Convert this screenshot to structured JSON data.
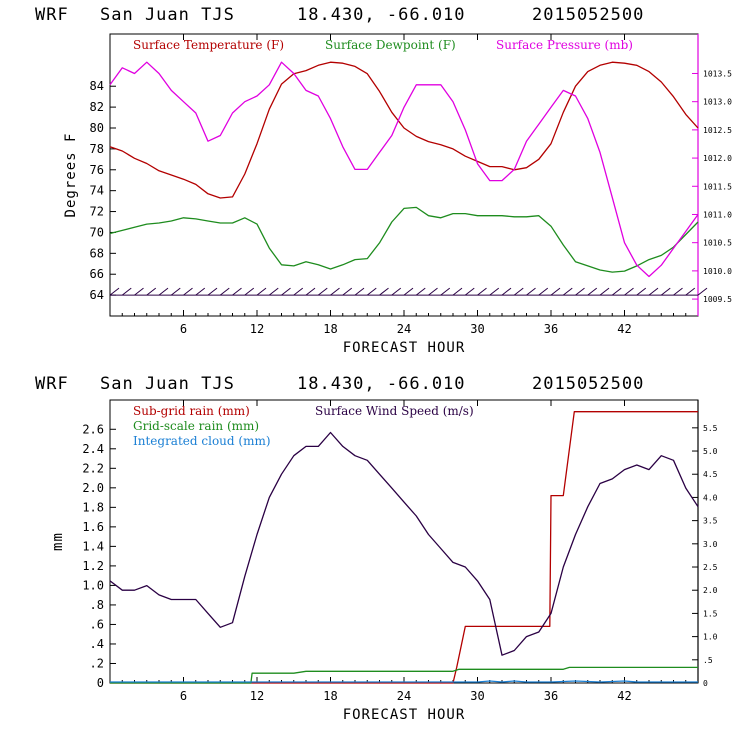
{
  "chart_data": [
    {
      "type": "line",
      "header": {
        "model": "WRF",
        "station": "San Juan TJS",
        "coords": "18.430, -66.010",
        "run": "2015052500"
      },
      "xlabel": "FORECAST HOUR",
      "ylabel": "Degrees F",
      "xlim": [
        0,
        48
      ],
      "ylim": [
        62,
        89
      ],
      "y2lim": [
        1009.2,
        1014.2
      ],
      "x_ticks": [
        6,
        12,
        18,
        24,
        30,
        36,
        42
      ],
      "y_ticks": [
        64,
        66,
        68,
        70,
        72,
        74,
        76,
        78,
        80,
        82,
        84
      ],
      "y2_ticks": [
        "1009.5",
        "1010.0",
        "1010.5",
        "1011.0",
        "1011.5",
        "1012.0",
        "1012.5",
        "1013.0",
        "1013.5"
      ],
      "legend": [
        {
          "label": "Surface Temperature (F)",
          "color": "#b30000"
        },
        {
          "label": "Surface Dewpoint (F)",
          "color": "#1e8c1e"
        },
        {
          "label": "Surface Pressure (mb)",
          "color": "#e000e0"
        }
      ],
      "series": [
        {
          "name": "Surface Temperature (F)",
          "axis": "left",
          "color": "#b30000",
          "points": [
            [
              0,
              78.2
            ],
            [
              1,
              77.8
            ],
            [
              2,
              77.1
            ],
            [
              3,
              76.6
            ],
            [
              4,
              75.9
            ],
            [
              5,
              75.5
            ],
            [
              6,
              75.1
            ],
            [
              7,
              74.6
            ],
            [
              8,
              73.7
            ],
            [
              9,
              73.3
            ],
            [
              10,
              73.4
            ],
            [
              11,
              75.6
            ],
            [
              12,
              78.5
            ],
            [
              13,
              81.8
            ],
            [
              14,
              84.2
            ],
            [
              15,
              85.2
            ],
            [
              16,
              85.5
            ],
            [
              17,
              86
            ],
            [
              18,
              86.3
            ],
            [
              19,
              86.2
            ],
            [
              20,
              85.9
            ],
            [
              21,
              85.2
            ],
            [
              22,
              83.5
            ],
            [
              23,
              81.5
            ],
            [
              24,
              80
            ],
            [
              25,
              79.2
            ],
            [
              26,
              78.7
            ],
            [
              27,
              78.4
            ],
            [
              28,
              78
            ],
            [
              29,
              77.3
            ],
            [
              30,
              76.8
            ],
            [
              31,
              76.3
            ],
            [
              32,
              76.3
            ],
            [
              33,
              76
            ],
            [
              34,
              76.2
            ],
            [
              35,
              77
            ],
            [
              36,
              78.5
            ],
            [
              37,
              81.5
            ],
            [
              38,
              84
            ],
            [
              39,
              85.4
            ],
            [
              40,
              86
            ],
            [
              41,
              86.3
            ],
            [
              42,
              86.2
            ],
            [
              43,
              86
            ],
            [
              44,
              85.4
            ],
            [
              45,
              84.4
            ],
            [
              46,
              83
            ],
            [
              47,
              81.3
            ],
            [
              48,
              80
            ]
          ]
        },
        {
          "name": "Surface Dewpoint (F)",
          "axis": "left",
          "color": "#1e8c1e",
          "points": [
            [
              0,
              69.9
            ],
            [
              1,
              70.2
            ],
            [
              2,
              70.5
            ],
            [
              3,
              70.8
            ],
            [
              4,
              70.9
            ],
            [
              5,
              71.1
            ],
            [
              6,
              71.4
            ],
            [
              7,
              71.3
            ],
            [
              8,
              71.1
            ],
            [
              9,
              70.9
            ],
            [
              10,
              70.9
            ],
            [
              11,
              71.4
            ],
            [
              12,
              70.8
            ],
            [
              13,
              68.5
            ],
            [
              14,
              66.9
            ],
            [
              15,
              66.8
            ],
            [
              16,
              67.2
            ],
            [
              17,
              66.9
            ],
            [
              18,
              66.5
            ],
            [
              19,
              66.9
            ],
            [
              20,
              67.4
            ],
            [
              21,
              67.5
            ],
            [
              22,
              69
            ],
            [
              23,
              71
            ],
            [
              24,
              72.3
            ],
            [
              25,
              72.4
            ],
            [
              26,
              71.6
            ],
            [
              27,
              71.4
            ],
            [
              28,
              71.8
            ],
            [
              29,
              71.8
            ],
            [
              30,
              71.6
            ],
            [
              31,
              71.6
            ],
            [
              32,
              71.6
            ],
            [
              33,
              71.5
            ],
            [
              34,
              71.5
            ],
            [
              35,
              71.6
            ],
            [
              36,
              70.6
            ],
            [
              37,
              68.8
            ],
            [
              38,
              67.2
            ],
            [
              39,
              66.8
            ],
            [
              40,
              66.4
            ],
            [
              41,
              66.2
            ],
            [
              42,
              66.3
            ],
            [
              43,
              66.8
            ],
            [
              44,
              67.4
            ],
            [
              45,
              67.8
            ],
            [
              46,
              68.6
            ],
            [
              47,
              69.8
            ],
            [
              48,
              71
            ]
          ]
        },
        {
          "name": "Surface Pressure (mb)",
          "axis": "right",
          "color": "#e000e0",
          "points": [
            [
              0,
              1013.3
            ],
            [
              1,
              1013.6
            ],
            [
              2,
              1013.5
            ],
            [
              3,
              1013.7
            ],
            [
              4,
              1013.5
            ],
            [
              5,
              1013.2
            ],
            [
              6,
              1013
            ],
            [
              7,
              1012.8
            ],
            [
              8,
              1012.3
            ],
            [
              9,
              1012.4
            ],
            [
              10,
              1012.8
            ],
            [
              11,
              1013
            ],
            [
              12,
              1013.1
            ],
            [
              13,
              1013.3
            ],
            [
              14,
              1013.7
            ],
            [
              15,
              1013.5
            ],
            [
              16,
              1013.2
            ],
            [
              17,
              1013.1
            ],
            [
              18,
              1012.7
            ],
            [
              19,
              1012.2
            ],
            [
              20,
              1011.8
            ],
            [
              21,
              1011.8
            ],
            [
              22,
              1012.1
            ],
            [
              23,
              1012.4
            ],
            [
              24,
              1012.9
            ],
            [
              25,
              1013.3
            ],
            [
              26,
              1013.3
            ],
            [
              27,
              1013.3
            ],
            [
              28,
              1013
            ],
            [
              29,
              1012.5
            ],
            [
              30,
              1011.9
            ],
            [
              31,
              1011.6
            ],
            [
              32,
              1011.6
            ],
            [
              33,
              1011.8
            ],
            [
              34,
              1012.3
            ],
            [
              35,
              1012.6
            ],
            [
              36,
              1012.9
            ],
            [
              37,
              1013.2
            ],
            [
              38,
              1013.1
            ],
            [
              39,
              1012.7
            ],
            [
              40,
              1012.1
            ],
            [
              41,
              1011.3
            ],
            [
              42,
              1010.5
            ],
            [
              43,
              1010.1
            ],
            [
              44,
              1009.9
            ],
            [
              45,
              1010.1
            ],
            [
              46,
              1010.4
            ],
            [
              47,
              1010.7
            ],
            [
              48,
              1011
            ]
          ]
        }
      ],
      "wind_barbs": {
        "color": "#2a0044",
        "level": 64,
        "hours": [
          0,
          1,
          2,
          3,
          4,
          5,
          6,
          7,
          8,
          9,
          10,
          11,
          12,
          13,
          14,
          15,
          16,
          17,
          18,
          19,
          20,
          21,
          22,
          23,
          24,
          25,
          26,
          27,
          28,
          29,
          30,
          31,
          32,
          33,
          34,
          35,
          36,
          37,
          38,
          39,
          40,
          41,
          42,
          43,
          44,
          45,
          46,
          47,
          48
        ]
      }
    },
    {
      "type": "line",
      "header": {
        "model": "WRF",
        "station": "San Juan TJS",
        "coords": "18.430, -66.010",
        "run": "2015052500"
      },
      "xlabel": "FORECAST HOUR",
      "ylabel": "mm",
      "xlim": [
        0,
        48
      ],
      "ylim": [
        0,
        2.9
      ],
      "y2lim": [
        0,
        6.1
      ],
      "x_ticks": [
        6,
        12,
        18,
        24,
        30,
        36,
        42
      ],
      "y_ticks": [
        "0",
        ".2",
        ".4",
        ".6",
        ".8",
        "1.0",
        "1.2",
        "1.4",
        "1.6",
        "1.8",
        "2.0",
        "2.2",
        "2.4",
        "2.6"
      ],
      "y2_ticks": [
        "0",
        ".5",
        "1.0",
        "1.5",
        "2.0",
        "2.5",
        "3.0",
        "3.5",
        "4.0",
        "4.5",
        "5.0",
        "5.5"
      ],
      "legend": [
        {
          "label": "Sub-grid rain (mm)",
          "color": "#b30000"
        },
        {
          "label": "Surface Wind Speed (m/s)",
          "color": "#2a0044"
        },
        {
          "label": "Grid-scale rain (mm)",
          "color": "#1e8c1e"
        },
        {
          "label": "Integrated cloud (mm)",
          "color": "#1a7fd4"
        }
      ],
      "series": [
        {
          "name": "Sub-grid rain (mm)",
          "axis": "left",
          "color": "#b30000",
          "points": [
            [
              0,
              0
            ],
            [
              28,
              0
            ],
            [
              28.3,
              0.16
            ],
            [
              29,
              0.58
            ],
            [
              35.9,
              0.58
            ],
            [
              36,
              1.92
            ],
            [
              37,
              1.92
            ],
            [
              37.9,
              2.78
            ],
            [
              48,
              2.78
            ]
          ]
        },
        {
          "name": "Grid-scale rain (mm)",
          "axis": "left",
          "color": "#1e8c1e",
          "points": [
            [
              0,
              0
            ],
            [
              11.5,
              0
            ],
            [
              11.6,
              0.1
            ],
            [
              15,
              0.1
            ],
            [
              16,
              0.12
            ],
            [
              28,
              0.12
            ],
            [
              28.5,
              0.14
            ],
            [
              37,
              0.14
            ],
            [
              37.5,
              0.16
            ],
            [
              48,
              0.16
            ]
          ]
        },
        {
          "name": "Integrated cloud (mm)",
          "axis": "left",
          "color": "#1a7fd4",
          "points": [
            [
              0,
              0.01
            ],
            [
              6,
              0.01
            ],
            [
              12,
              0.01
            ],
            [
              18,
              0.01
            ],
            [
              24,
              0.01
            ],
            [
              30,
              0.01
            ],
            [
              31,
              0.02
            ],
            [
              32,
              0.01
            ],
            [
              33,
              0.02
            ],
            [
              34,
              0.01
            ],
            [
              36,
              0.01
            ],
            [
              38,
              0.02
            ],
            [
              40,
              0.01
            ],
            [
              42,
              0.02
            ],
            [
              43,
              0.01
            ],
            [
              48,
              0.01
            ]
          ]
        },
        {
          "name": "Surface Wind Speed (m/s)",
          "axis": "right",
          "color": "#2a0044",
          "points": [
            [
              0,
              2.2
            ],
            [
              1,
              2
            ],
            [
              2,
              2
            ],
            [
              3,
              2.1
            ],
            [
              4,
              1.9
            ],
            [
              5,
              1.8
            ],
            [
              6,
              1.8
            ],
            [
              7,
              1.8
            ],
            [
              8,
              1.5
            ],
            [
              9,
              1.2
            ],
            [
              10,
              1.3
            ],
            [
              11,
              2.3
            ],
            [
              12,
              3.2
            ],
            [
              13,
              4
            ],
            [
              14,
              4.5
            ],
            [
              15,
              4.9
            ],
            [
              16,
              5.1
            ],
            [
              17,
              5.1
            ],
            [
              18,
              5.4
            ],
            [
              19,
              5.1
            ],
            [
              20,
              4.9
            ],
            [
              21,
              4.8
            ],
            [
              22,
              4.5
            ],
            [
              23,
              4.2
            ],
            [
              24,
              3.9
            ],
            [
              25,
              3.6
            ],
            [
              26,
              3.2
            ],
            [
              27,
              2.9
            ],
            [
              28,
              2.6
            ],
            [
              29,
              2.5
            ],
            [
              30,
              2.2
            ],
            [
              31,
              1.8
            ],
            [
              32,
              0.6
            ],
            [
              33,
              0.7
            ],
            [
              34,
              1
            ],
            [
              35,
              1.1
            ],
            [
              36,
              1.5
            ],
            [
              37,
              2.5
            ],
            [
              38,
              3.2
            ],
            [
              39,
              3.8
            ],
            [
              40,
              4.3
            ],
            [
              41,
              4.4
            ],
            [
              42,
              4.6
            ],
            [
              43,
              4.7
            ],
            [
              44,
              4.6
            ],
            [
              45,
              4.9
            ],
            [
              46,
              4.8
            ],
            [
              47,
              4.2
            ],
            [
              48,
              3.8
            ]
          ]
        }
      ]
    }
  ]
}
